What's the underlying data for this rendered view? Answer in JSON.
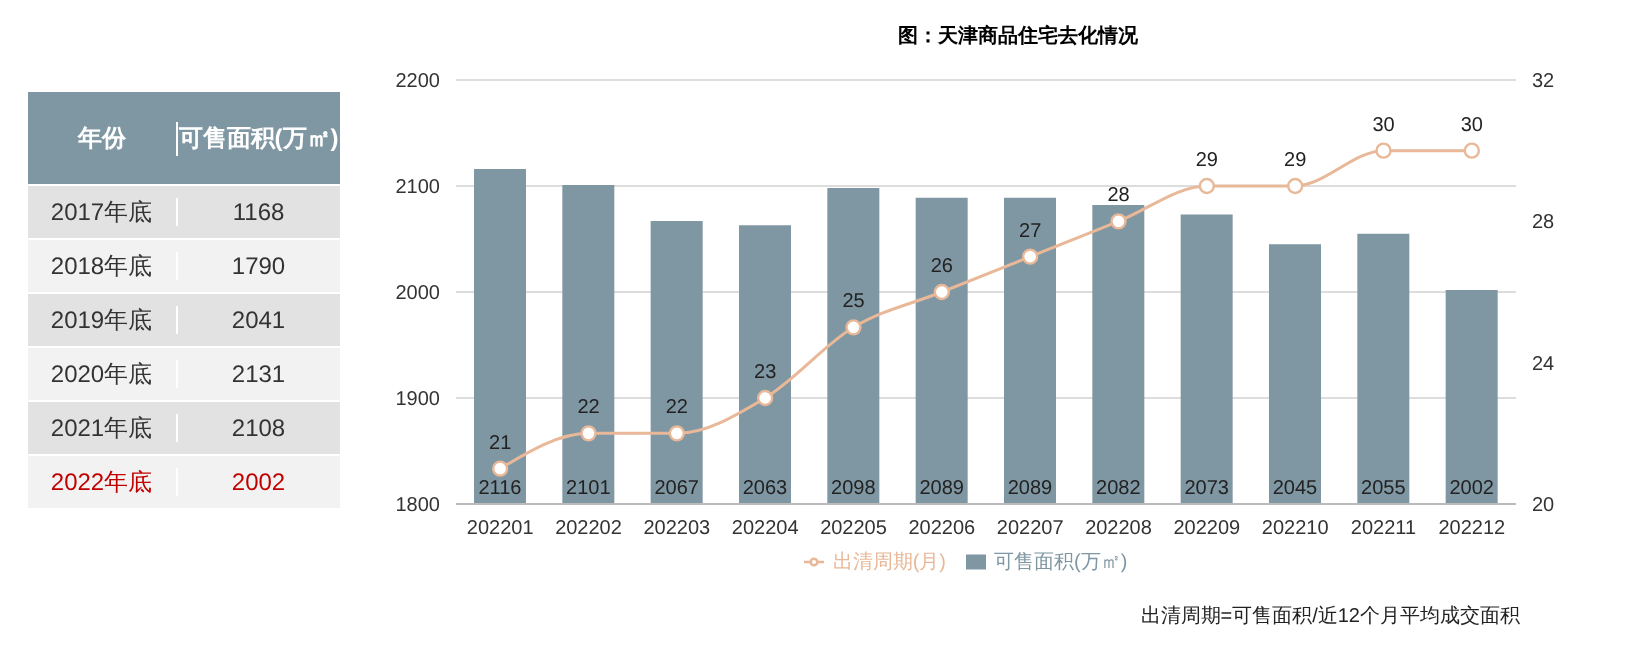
{
  "chart_data": [
    {
      "type": "heatmap",
      "ylabel": "年份",
      "categories": [
        "可售面积(万㎡)"
      ],
      "y_categories": [
        "2017年底",
        "2018年底",
        "2019年底",
        "2020年底",
        "2021年底",
        "2022年底"
      ],
      "cells": [
        [
          1168
        ],
        [
          1790
        ],
        [
          2041
        ],
        [
          2131
        ],
        [
          2108
        ],
        [
          2002
        ]
      ],
      "data_labels": true
    },
    {
      "type": "bar",
      "title": "图：天津商品住宅去化情况",
      "categories": [
        "202201",
        "202202",
        "202203",
        "202204",
        "202205",
        "202206",
        "202207",
        "202208",
        "202209",
        "202210",
        "202211",
        "202212"
      ],
      "series": [
        {
          "name": "可售面积(万㎡)",
          "type": "bar",
          "color": "#7f96a3",
          "values": [
            2116,
            2101,
            2067,
            2063,
            2098,
            2089,
            2089,
            2082,
            2073,
            2045,
            2055,
            2002
          ]
        },
        {
          "name": "出清周期(月)",
          "type": "line",
          "axis": "y2",
          "color": "#e8b898",
          "values": [
            21,
            22,
            22,
            23,
            25,
            26,
            27,
            28,
            29,
            29,
            30,
            30
          ]
        }
      ],
      "ylim": [
        1800,
        2200
      ],
      "yticks": [
        1800,
        1900,
        2000,
        2100,
        2200
      ],
      "y2lim": [
        20,
        32
      ],
      "y2ticks": [
        20,
        24,
        28,
        32
      ],
      "grid": "y",
      "legend": "bottom",
      "marker": "circle",
      "data_labels": true,
      "annotations": [
        "出清周期=可售面积/近12个月平均成交面积"
      ]
    }
  ]
}
